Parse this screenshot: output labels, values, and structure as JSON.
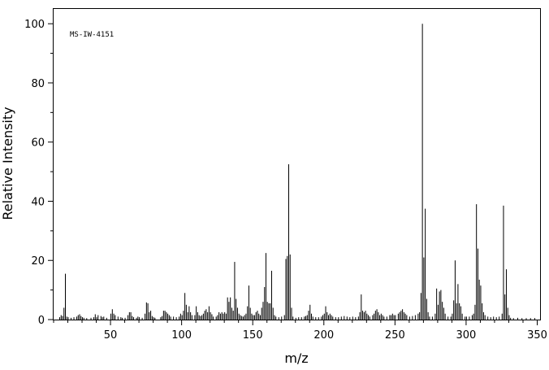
{
  "chart_data": {
    "type": "bar",
    "subtype": "mass-spectrum-stick",
    "annotation": "MS-IW-4151",
    "xlabel": "m/z",
    "ylabel": "Relative Intensity",
    "xlim": [
      10,
      352
    ],
    "ylim": [
      0,
      105
    ],
    "xticks_major": [
      50,
      100,
      150,
      200,
      250,
      300,
      350
    ],
    "xticks_minor_step": 10,
    "yticks_major": [
      0,
      20,
      40,
      60,
      80,
      100
    ],
    "yticks_minor_step": 10,
    "grid": false,
    "peaks": [
      [
        14,
        0.8
      ],
      [
        15,
        1.5
      ],
      [
        16,
        1.2
      ],
      [
        17,
        4.0
      ],
      [
        18,
        15.5
      ],
      [
        19,
        1.0
      ],
      [
        20,
        0.8
      ],
      [
        22,
        0.6
      ],
      [
        24,
        0.8
      ],
      [
        26,
        1.0
      ],
      [
        27,
        1.5
      ],
      [
        28,
        1.8
      ],
      [
        29,
        1.2
      ],
      [
        30,
        0.8
      ],
      [
        31,
        0.6
      ],
      [
        33,
        0.5
      ],
      [
        36,
        0.6
      ],
      [
        38,
        0.8
      ],
      [
        39,
        1.8
      ],
      [
        40,
        0.8
      ],
      [
        41,
        1.5
      ],
      [
        43,
        1.2
      ],
      [
        44,
        0.8
      ],
      [
        45,
        1.0
      ],
      [
        47,
        0.6
      ],
      [
        50,
        2.0
      ],
      [
        51,
        3.5
      ],
      [
        52,
        2.0
      ],
      [
        53,
        1.5
      ],
      [
        55,
        1.0
      ],
      [
        57,
        0.8
      ],
      [
        58,
        0.6
      ],
      [
        60,
        0.6
      ],
      [
        62,
        1.5
      ],
      [
        63,
        2.5
      ],
      [
        64,
        2.5
      ],
      [
        65,
        1.2
      ],
      [
        66,
        0.8
      ],
      [
        68,
        0.6
      ],
      [
        69,
        1.0
      ],
      [
        70,
        0.8
      ],
      [
        72,
        0.6
      ],
      [
        74,
        2.0
      ],
      [
        75,
        5.8
      ],
      [
        76,
        5.5
      ],
      [
        77,
        2.5
      ],
      [
        78,
        3.0
      ],
      [
        79,
        1.2
      ],
      [
        80,
        0.8
      ],
      [
        81,
        0.6
      ],
      [
        85,
        0.8
      ],
      [
        86,
        1.2
      ],
      [
        87,
        3.0
      ],
      [
        88,
        3.0
      ],
      [
        89,
        2.5
      ],
      [
        90,
        2.0
      ],
      [
        91,
        1.5
      ],
      [
        92,
        1.0
      ],
      [
        94,
        1.0
      ],
      [
        96,
        0.8
      ],
      [
        98,
        1.0
      ],
      [
        99,
        2.0
      ],
      [
        100,
        1.5
      ],
      [
        101,
        3.0
      ],
      [
        102,
        9.0
      ],
      [
        103,
        5.0
      ],
      [
        104,
        2.5
      ],
      [
        105,
        4.5
      ],
      [
        106,
        2.5
      ],
      [
        107,
        1.5
      ],
      [
        109,
        1.5
      ],
      [
        110,
        4.5
      ],
      [
        111,
        2.5
      ],
      [
        112,
        1.5
      ],
      [
        113,
        1.2
      ],
      [
        114,
        1.5
      ],
      [
        115,
        2.0
      ],
      [
        116,
        3.0
      ],
      [
        117,
        3.5
      ],
      [
        118,
        2.5
      ],
      [
        119,
        4.5
      ],
      [
        120,
        2.5
      ],
      [
        121,
        1.8
      ],
      [
        122,
        1.0
      ],
      [
        124,
        1.0
      ],
      [
        125,
        1.5
      ],
      [
        126,
        2.5
      ],
      [
        127,
        2.0
      ],
      [
        128,
        2.5
      ],
      [
        129,
        2.0
      ],
      [
        130,
        2.5
      ],
      [
        131,
        2.0
      ],
      [
        132,
        7.5
      ],
      [
        133,
        6.0
      ],
      [
        134,
        7.5
      ],
      [
        135,
        4.0
      ],
      [
        136,
        3.0
      ],
      [
        137,
        19.5
      ],
      [
        138,
        7.0
      ],
      [
        139,
        4.0
      ],
      [
        140,
        2.0
      ],
      [
        141,
        1.5
      ],
      [
        142,
        1.2
      ],
      [
        143,
        1.0
      ],
      [
        144,
        1.5
      ],
      [
        145,
        2.0
      ],
      [
        146,
        4.5
      ],
      [
        147,
        11.5
      ],
      [
        148,
        4.0
      ],
      [
        149,
        2.0
      ],
      [
        150,
        1.5
      ],
      [
        151,
        1.5
      ],
      [
        152,
        2.5
      ],
      [
        153,
        3.0
      ],
      [
        154,
        2.0
      ],
      [
        155,
        1.5
      ],
      [
        156,
        4.0
      ],
      [
        157,
        6.0
      ],
      [
        158,
        11.0
      ],
      [
        159,
        22.5
      ],
      [
        160,
        6.0
      ],
      [
        161,
        5.5
      ],
      [
        162,
        5.5
      ],
      [
        163,
        16.5
      ],
      [
        164,
        4.0
      ],
      [
        165,
        1.5
      ],
      [
        166,
        1.0
      ],
      [
        168,
        0.8
      ],
      [
        170,
        1.0
      ],
      [
        172,
        1.5
      ],
      [
        173,
        20.5
      ],
      [
        174,
        21.5
      ],
      [
        175,
        52.5
      ],
      [
        176,
        22.0
      ],
      [
        177,
        4.0
      ],
      [
        178,
        1.0
      ],
      [
        180,
        0.6
      ],
      [
        182,
        0.8
      ],
      [
        184,
        0.8
      ],
      [
        186,
        1.0
      ],
      [
        187,
        1.2
      ],
      [
        188,
        1.5
      ],
      [
        189,
        3.0
      ],
      [
        190,
        5.0
      ],
      [
        191,
        2.0
      ],
      [
        192,
        1.0
      ],
      [
        194,
        0.8
      ],
      [
        196,
        0.8
      ],
      [
        198,
        1.0
      ],
      [
        199,
        1.5
      ],
      [
        200,
        2.0
      ],
      [
        201,
        4.5
      ],
      [
        202,
        2.5
      ],
      [
        203,
        1.5
      ],
      [
        204,
        2.0
      ],
      [
        205,
        1.5
      ],
      [
        206,
        1.0
      ],
      [
        208,
        0.8
      ],
      [
        210,
        0.8
      ],
      [
        212,
        1.0
      ],
      [
        214,
        1.2
      ],
      [
        216,
        1.0
      ],
      [
        218,
        0.8
      ],
      [
        220,
        1.0
      ],
      [
        222,
        0.8
      ],
      [
        224,
        1.0
      ],
      [
        225,
        2.5
      ],
      [
        226,
        8.5
      ],
      [
        227,
        3.0
      ],
      [
        228,
        2.5
      ],
      [
        229,
        3.0
      ],
      [
        230,
        2.0
      ],
      [
        231,
        1.5
      ],
      [
        232,
        1.0
      ],
      [
        234,
        1.5
      ],
      [
        235,
        2.0
      ],
      [
        236,
        3.0
      ],
      [
        237,
        3.5
      ],
      [
        238,
        2.5
      ],
      [
        239,
        1.5
      ],
      [
        240,
        2.0
      ],
      [
        241,
        1.5
      ],
      [
        242,
        1.0
      ],
      [
        244,
        1.0
      ],
      [
        246,
        1.5
      ],
      [
        247,
        1.5
      ],
      [
        248,
        2.0
      ],
      [
        249,
        1.5
      ],
      [
        250,
        1.5
      ],
      [
        252,
        2.0
      ],
      [
        253,
        2.5
      ],
      [
        254,
        3.0
      ],
      [
        255,
        3.5
      ],
      [
        256,
        2.5
      ],
      [
        257,
        2.0
      ],
      [
        258,
        1.5
      ],
      [
        260,
        1.0
      ],
      [
        262,
        1.2
      ],
      [
        264,
        1.5
      ],
      [
        266,
        2.0
      ],
      [
        267,
        2.5
      ],
      [
        268,
        9.0
      ],
      [
        269,
        100.0
      ],
      [
        270,
        21.0
      ],
      [
        271,
        37.5
      ],
      [
        272,
        7.0
      ],
      [
        273,
        2.5
      ],
      [
        274,
        1.0
      ],
      [
        276,
        1.0
      ],
      [
        278,
        2.0
      ],
      [
        279,
        10.5
      ],
      [
        280,
        5.0
      ],
      [
        281,
        9.5
      ],
      [
        282,
        10.0
      ],
      [
        283,
        6.0
      ],
      [
        284,
        4.0
      ],
      [
        285,
        2.0
      ],
      [
        287,
        1.0
      ],
      [
        289,
        1.0
      ],
      [
        290,
        2.0
      ],
      [
        291,
        6.5
      ],
      [
        292,
        20.0
      ],
      [
        293,
        5.5
      ],
      [
        294,
        12.0
      ],
      [
        295,
        5.5
      ],
      [
        296,
        4.5
      ],
      [
        297,
        2.0
      ],
      [
        299,
        1.0
      ],
      [
        300,
        1.0
      ],
      [
        302,
        1.0
      ],
      [
        304,
        1.5
      ],
      [
        305,
        2.0
      ],
      [
        306,
        5.0
      ],
      [
        307,
        39.0
      ],
      [
        308,
        24.0
      ],
      [
        309,
        13.5
      ],
      [
        310,
        11.5
      ],
      [
        311,
        5.5
      ],
      [
        312,
        2.5
      ],
      [
        313,
        1.5
      ],
      [
        315,
        1.0
      ],
      [
        317,
        0.8
      ],
      [
        319,
        1.0
      ],
      [
        321,
        0.8
      ],
      [
        323,
        1.0
      ],
      [
        325,
        2.0
      ],
      [
        326,
        38.5
      ],
      [
        327,
        8.5
      ],
      [
        328,
        17.0
      ],
      [
        329,
        4.0
      ],
      [
        330,
        1.5
      ],
      [
        331,
        0.6
      ],
      [
        333,
        0.5
      ],
      [
        336,
        0.6
      ],
      [
        339,
        0.5
      ],
      [
        342,
        0.5
      ],
      [
        345,
        0.5
      ],
      [
        348,
        0.5
      ]
    ]
  }
}
